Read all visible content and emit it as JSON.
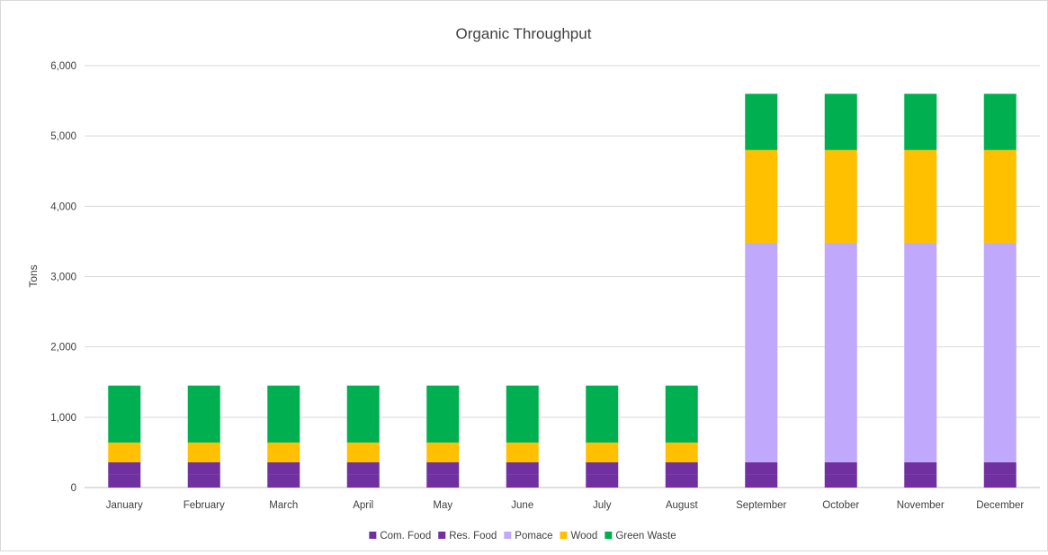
{
  "chart_data": {
    "type": "bar",
    "stacked": true,
    "title": "Organic Throughput",
    "xlabel": "",
    "ylabel": "Tons",
    "ylim": [
      0,
      6000
    ],
    "yticks": [
      0,
      1000,
      2000,
      3000,
      4000,
      5000,
      6000
    ],
    "ytick_labels": [
      "0",
      "1,000",
      "2,000",
      "3,000",
      "4,000",
      "5,000",
      "6,000"
    ],
    "grid": true,
    "legend_position": "bottom",
    "categories": [
      "January",
      "February",
      "March",
      "April",
      "May",
      "June",
      "July",
      "August",
      "September",
      "October",
      "November",
      "December"
    ],
    "series": [
      {
        "name": "Com. Food",
        "color": "#7030a0",
        "values": [
          180,
          180,
          180,
          180,
          180,
          180,
          180,
          180,
          180,
          180,
          180,
          180
        ]
      },
      {
        "name": "Res. Food",
        "color": "#7030a0",
        "values": [
          180,
          180,
          180,
          180,
          180,
          180,
          180,
          180,
          180,
          180,
          180,
          180
        ]
      },
      {
        "name": "Pomace",
        "color": "#c0a8fc",
        "values": [
          0,
          0,
          0,
          0,
          0,
          0,
          0,
          0,
          3120,
          3120,
          3120,
          3120
        ]
      },
      {
        "name": "Wood",
        "color": "#ffc000",
        "values": [
          280,
          280,
          280,
          280,
          280,
          280,
          280,
          280,
          1320,
          1320,
          1320,
          1320
        ]
      },
      {
        "name": "Green Waste",
        "color": "#00b050",
        "values": [
          810,
          810,
          810,
          810,
          810,
          810,
          810,
          810,
          800,
          800,
          800,
          800
        ]
      }
    ]
  }
}
